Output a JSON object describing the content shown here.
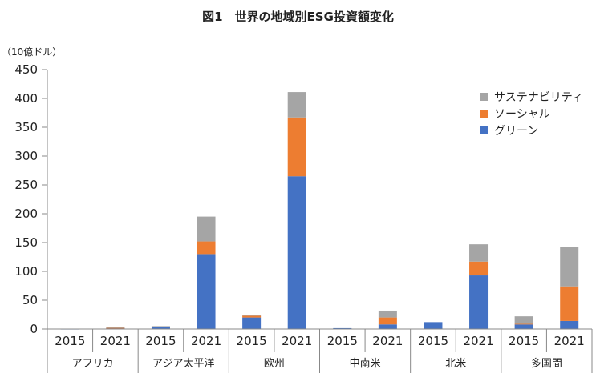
{
  "title": "図1　世界の地域別ESG投資額変化",
  "unit_label": "（10億ドル）",
  "chart_data": {
    "type": "bar",
    "stacked": true,
    "ylim": [
      0,
      450
    ],
    "yticks": [
      0,
      50,
      100,
      150,
      200,
      250,
      300,
      350,
      400,
      450
    ],
    "years": [
      "2015",
      "2021"
    ],
    "regions": [
      "アフリカ",
      "アジア太平洋",
      "欧州",
      "中南米",
      "北米",
      "多国間"
    ],
    "categories": [
      "2015",
      "2021",
      "2015",
      "2021",
      "2015",
      "2021",
      "2015",
      "2021",
      "2015",
      "2021",
      "2015",
      "2021"
    ],
    "series": [
      {
        "name": "グリーン",
        "color": "#4472C4",
        "values": [
          0.3,
          1.5,
          4,
          130,
          20,
          265,
          1.5,
          8,
          12,
          93,
          8,
          14
        ]
      },
      {
        "name": "ソーシャル",
        "color": "#ED7D31",
        "values": [
          0,
          0.5,
          0.5,
          22,
          3,
          102,
          0,
          12,
          0,
          24,
          1,
          60
        ]
      },
      {
        "name": "サステナビリティ",
        "color": "#A5A5A5",
        "values": [
          0,
          1,
          0.5,
          43,
          2,
          44,
          0,
          12,
          0,
          30,
          13,
          68
        ]
      }
    ],
    "legend_order": [
      "サステナビリティ",
      "ソーシャル",
      "グリーン"
    ],
    "legend_position": "top-right",
    "grid": false
  }
}
